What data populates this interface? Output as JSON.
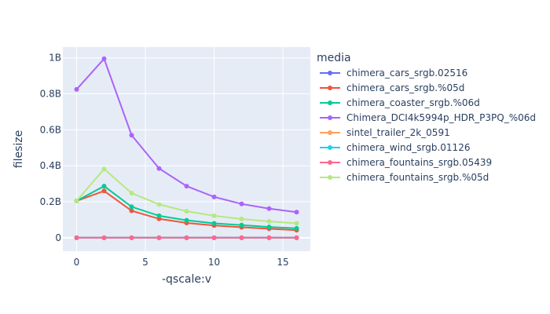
{
  "chart_data": {
    "type": "line",
    "xlabel": "-qscale:v",
    "ylabel": "filesize",
    "xlim": [
      -1,
      17
    ],
    "ylim": [
      -75000000,
      1060000000
    ],
    "x_ticks": [
      0,
      5,
      10,
      15
    ],
    "y_ticks": [
      {
        "value": 0,
        "label": "0"
      },
      {
        "value": 200000000,
        "label": "0.2B"
      },
      {
        "value": 400000000,
        "label": "0.4B"
      },
      {
        "value": 600000000,
        "label": "0.6B"
      },
      {
        "value": 800000000,
        "label": "0.8B"
      },
      {
        "value": 1000000000,
        "label": "1B"
      }
    ],
    "grid": true,
    "plot_background": "#e5ecf6",
    "legend_position": "right",
    "legend_title": "media",
    "x": [
      0,
      2,
      4,
      6,
      8,
      10,
      12,
      14,
      16
    ],
    "series": [
      {
        "name": "chimera_cars_srgb.02516",
        "color": "#636efa",
        "values": [
          0,
          0,
          0,
          0,
          0,
          0,
          0,
          0,
          0
        ]
      },
      {
        "name": "chimera_cars_srgb.%05d",
        "color": "#ef553b",
        "values": [
          205000000,
          260000000,
          150000000,
          105000000,
          82000000,
          68000000,
          58000000,
          50000000,
          42000000
        ]
      },
      {
        "name": "chimera_coaster_srgb.%06d",
        "color": "#00cc96",
        "values": [
          205000000,
          287000000,
          172000000,
          122000000,
          97000000,
          80000000,
          70000000,
          60000000,
          52000000
        ]
      },
      {
        "name": "Chimera_DCI4k5994p_HDR_P3PQ_%06d",
        "color": "#ab63fa",
        "values": [
          825000000,
          995000000,
          570000000,
          385000000,
          287000000,
          227000000,
          188000000,
          162000000,
          142000000
        ]
      },
      {
        "name": "sintel_trailer_2k_0591",
        "color": "#ffa15a",
        "values": [
          0,
          0,
          0,
          0,
          0,
          0,
          0,
          0,
          0
        ]
      },
      {
        "name": "chimera_wind_srgb.01126",
        "color": "#19d3f3",
        "values": [
          0,
          0,
          0,
          0,
          0,
          0,
          0,
          0,
          0
        ]
      },
      {
        "name": "chimera_fountains_srgb.05439",
        "color": "#ff6692",
        "values": [
          0,
          0,
          0,
          0,
          0,
          0,
          0,
          0,
          0
        ]
      },
      {
        "name": "chimera_fountains_srgb.%05d",
        "color": "#b6e880",
        "values": [
          205000000,
          382000000,
          248000000,
          185000000,
          147000000,
          122000000,
          104000000,
          91000000,
          80000000
        ]
      }
    ]
  }
}
